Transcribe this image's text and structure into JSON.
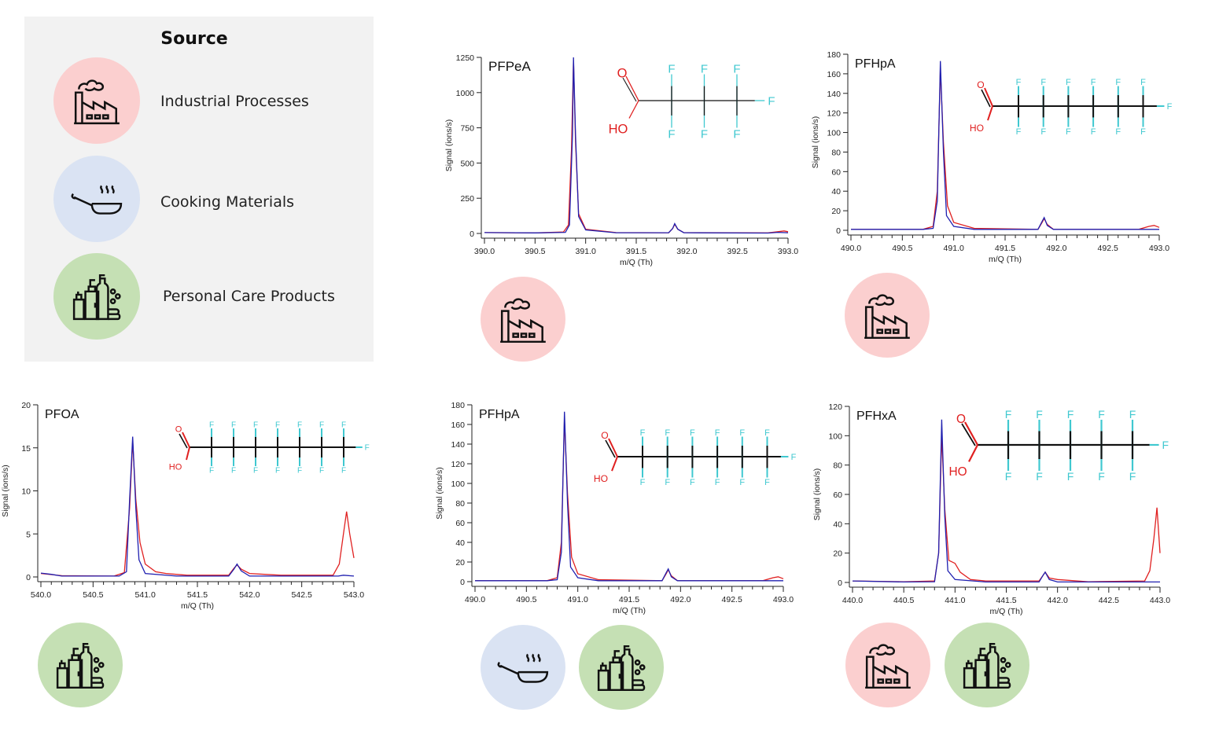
{
  "legend": {
    "title": "Source",
    "items": [
      {
        "label": "Industrial Processes",
        "icon": "factory-icon",
        "color": "#fbcfcf"
      },
      {
        "label": "Cooking Materials",
        "icon": "frying-pan-icon",
        "color": "#dae3f3"
      },
      {
        "label": "Personal Care Products",
        "icon": "bottles-icon",
        "color": "#c5e0b4"
      }
    ]
  },
  "colors": {
    "blue_series": "#2020b0",
    "red_series": "#e02020",
    "fluorine": "#40c8d0",
    "oxygen": "#e02020",
    "bond": "#111111"
  },
  "chart_data": [
    {
      "type": "line",
      "title": "PFPeA",
      "xlabel": "m/Q (Th)",
      "ylabel": "Signal (ions/s)",
      "xlim": [
        390.0,
        393.0
      ],
      "ylim": [
        0,
        1250
      ],
      "xticks": [
        "390.0",
        "390.5",
        "391.0",
        "391.5",
        "392.0",
        "392.5",
        "393.0"
      ],
      "yticks": [
        "0",
        "250",
        "500",
        "750",
        "1000",
        "1250"
      ],
      "molecule": {
        "cf2_units": 3,
        "o": "O",
        "ho": "HO",
        "f": "F"
      },
      "sources": [
        "factory-icon"
      ],
      "series": [
        {
          "color": "red",
          "points": [
            [
              390,
              6
            ],
            [
              390.5,
              4
            ],
            [
              390.78,
              10
            ],
            [
              390.83,
              60
            ],
            [
              390.86,
              600
            ],
            [
              390.88,
              1230
            ],
            [
              390.9,
              650
            ],
            [
              390.93,
              140
            ],
            [
              391.0,
              30
            ],
            [
              391.3,
              6
            ],
            [
              391.82,
              5
            ],
            [
              391.86,
              35
            ],
            [
              391.88,
              65
            ],
            [
              391.91,
              30
            ],
            [
              391.97,
              6
            ],
            [
              392.8,
              4
            ],
            [
              392.9,
              12
            ],
            [
              392.96,
              18
            ],
            [
              393,
              12
            ]
          ]
        },
        {
          "color": "blue",
          "points": [
            [
              390,
              6
            ],
            [
              390.5,
              4
            ],
            [
              390.8,
              8
            ],
            [
              390.84,
              60
            ],
            [
              390.87,
              700
            ],
            [
              390.88,
              1250
            ],
            [
              390.9,
              700
            ],
            [
              390.93,
              120
            ],
            [
              391.0,
              25
            ],
            [
              391.3,
              5
            ],
            [
              391.82,
              5
            ],
            [
              391.86,
              35
            ],
            [
              391.88,
              70
            ],
            [
              391.91,
              30
            ],
            [
              391.97,
              5
            ],
            [
              392.8,
              3
            ],
            [
              392.9,
              8
            ],
            [
              393,
              5
            ]
          ]
        }
      ]
    },
    {
      "type": "line",
      "title": "PFHpA",
      "xlabel": "m/Q (Th)",
      "ylabel": "Signal (ions/s)",
      "xlim": [
        490.0,
        493.0
      ],
      "ylim": [
        0,
        180
      ],
      "xticks": [
        "490.0",
        "490.5",
        "491.0",
        "491.5",
        "492.0",
        "492.5",
        "493.0"
      ],
      "yticks": [
        "0",
        "20",
        "40",
        "60",
        "80",
        "100",
        "120",
        "140",
        "160",
        "180"
      ],
      "molecule": {
        "cf2_units": 6,
        "o": "O",
        "ho": "HO",
        "f": "F"
      },
      "sources": [
        "factory-icon"
      ],
      "series": [
        {
          "color": "red",
          "points": [
            [
              490,
              1
            ],
            [
              490.7,
              1
            ],
            [
              490.8,
              4
            ],
            [
              490.84,
              40
            ],
            [
              490.87,
              165
            ],
            [
              490.9,
              90
            ],
            [
              490.94,
              25
            ],
            [
              491.0,
              8
            ],
            [
              491.2,
              2
            ],
            [
              491.82,
              1
            ],
            [
              491.86,
              8
            ],
            [
              491.88,
              12
            ],
            [
              491.91,
              6
            ],
            [
              491.97,
              1
            ],
            [
              492.8,
              1
            ],
            [
              492.9,
              4
            ],
            [
              492.95,
              5
            ],
            [
              493,
              3
            ]
          ]
        },
        {
          "color": "blue",
          "points": [
            [
              490,
              1
            ],
            [
              490.7,
              1
            ],
            [
              490.8,
              2
            ],
            [
              490.84,
              30
            ],
            [
              490.87,
              173
            ],
            [
              490.9,
              80
            ],
            [
              490.93,
              15
            ],
            [
              491.0,
              4
            ],
            [
              491.2,
              1
            ],
            [
              491.82,
              1
            ],
            [
              491.86,
              9
            ],
            [
              491.88,
              13
            ],
            [
              491.91,
              5
            ],
            [
              491.97,
              1
            ],
            [
              493,
              1
            ]
          ]
        }
      ]
    },
    {
      "type": "line",
      "title": "PFOA",
      "xlabel": "m/Q (Th)",
      "ylabel": "Signal (ions/s)",
      "xlim": [
        540.0,
        543.0
      ],
      "ylim": [
        0,
        20
      ],
      "xticks": [
        "540.0",
        "540.5",
        "541.0",
        "541.5",
        "542.0",
        "542.5",
        "543.0"
      ],
      "yticks": [
        "0",
        "5",
        "10",
        "15",
        "20"
      ],
      "molecule": {
        "cf2_units": 7,
        "o": "O",
        "ho": "HO",
        "f": "F"
      },
      "sources": [
        "bottles-icon"
      ],
      "series": [
        {
          "color": "red",
          "points": [
            [
              540,
              0.4
            ],
            [
              540.2,
              0.15
            ],
            [
              540.7,
              0.1
            ],
            [
              540.8,
              0.5
            ],
            [
              540.85,
              8
            ],
            [
              540.88,
              15.8
            ],
            [
              540.91,
              9
            ],
            [
              540.95,
              4
            ],
            [
              541.0,
              1.5
            ],
            [
              541.1,
              0.6
            ],
            [
              541.2,
              0.4
            ],
            [
              541.4,
              0.2
            ],
            [
              541.8,
              0.2
            ],
            [
              541.85,
              1.0
            ],
            [
              541.88,
              1.4
            ],
            [
              541.92,
              0.9
            ],
            [
              542.0,
              0.4
            ],
            [
              542.3,
              0.2
            ],
            [
              542.8,
              0.2
            ],
            [
              542.86,
              1.5
            ],
            [
              542.9,
              5
            ],
            [
              542.93,
              7.6
            ],
            [
              542.96,
              5
            ],
            [
              543,
              2.2
            ]
          ]
        },
        {
          "color": "blue",
          "points": [
            [
              540,
              0.45
            ],
            [
              540.1,
              0.3
            ],
            [
              540.2,
              0.1
            ],
            [
              540.75,
              0.1
            ],
            [
              540.82,
              0.6
            ],
            [
              540.85,
              9
            ],
            [
              540.88,
              16.3
            ],
            [
              540.91,
              8
            ],
            [
              540.94,
              2
            ],
            [
              541.0,
              0.4
            ],
            [
              541.3,
              0.1
            ],
            [
              541.8,
              0.1
            ],
            [
              541.85,
              0.9
            ],
            [
              541.88,
              1.5
            ],
            [
              541.92,
              0.7
            ],
            [
              542.0,
              0.1
            ],
            [
              542.85,
              0.1
            ],
            [
              542.9,
              0.2
            ],
            [
              543,
              0.1
            ]
          ]
        }
      ]
    },
    {
      "type": "line",
      "title": "PFHpA",
      "xlabel": "m/Q (Th)",
      "ylabel": "Signal (ions/s)",
      "xlim": [
        490.0,
        493.0
      ],
      "ylim": [
        0,
        180
      ],
      "xticks": [
        "490.0",
        "490.5",
        "491.0",
        "491.5",
        "492.0",
        "492.5",
        "493.0"
      ],
      "yticks": [
        "0",
        "20",
        "40",
        "60",
        "80",
        "100",
        "120",
        "140",
        "160",
        "180"
      ],
      "molecule": {
        "cf2_units": 6,
        "o": "O",
        "ho": "HO",
        "f": "F"
      },
      "sources": [
        "frying-pan-icon",
        "bottles-icon"
      ],
      "series": [
        {
          "color": "red",
          "points": [
            [
              490,
              1
            ],
            [
              490.7,
              1
            ],
            [
              490.8,
              4
            ],
            [
              490.84,
              40
            ],
            [
              490.87,
              165
            ],
            [
              490.9,
              90
            ],
            [
              490.94,
              25
            ],
            [
              491.0,
              8
            ],
            [
              491.2,
              2
            ],
            [
              491.82,
              1
            ],
            [
              491.86,
              8
            ],
            [
              491.88,
              12
            ],
            [
              491.91,
              6
            ],
            [
              491.97,
              1
            ],
            [
              492.8,
              1
            ],
            [
              492.9,
              4
            ],
            [
              492.95,
              5
            ],
            [
              493,
              3
            ]
          ]
        },
        {
          "color": "blue",
          "points": [
            [
              490,
              1
            ],
            [
              490.7,
              1
            ],
            [
              490.8,
              2
            ],
            [
              490.84,
              30
            ],
            [
              490.87,
              173
            ],
            [
              490.9,
              80
            ],
            [
              490.93,
              15
            ],
            [
              491.0,
              4
            ],
            [
              491.2,
              1
            ],
            [
              491.82,
              1
            ],
            [
              491.86,
              9
            ],
            [
              491.88,
              13
            ],
            [
              491.91,
              5
            ],
            [
              491.97,
              1
            ],
            [
              493,
              1
            ]
          ]
        }
      ]
    },
    {
      "type": "line",
      "title": "PFHxA",
      "xlabel": "m/Q (Th)",
      "ylabel": "Signal (ions/s)",
      "xlim": [
        440.0,
        443.0
      ],
      "ylim": [
        0,
        120
      ],
      "xticks": [
        "440.0",
        "440.5",
        "441.0",
        "441.5",
        "442.0",
        "442.5",
        "443.0"
      ],
      "yticks": [
        "0",
        "20",
        "40",
        "60",
        "80",
        "100",
        "120"
      ],
      "molecule": {
        "cf2_units": 5,
        "o": "O",
        "ho": "HO",
        "f": "F"
      },
      "sources": [
        "factory-icon",
        "bottles-icon"
      ],
      "series": [
        {
          "color": "red",
          "points": [
            [
              440,
              1
            ],
            [
              440.5,
              0.5
            ],
            [
              440.8,
              1
            ],
            [
              440.84,
              20
            ],
            [
              440.87,
              100
            ],
            [
              440.9,
              50
            ],
            [
              440.94,
              15
            ],
            [
              441.0,
              13
            ],
            [
              441.05,
              7
            ],
            [
              441.15,
              2
            ],
            [
              441.3,
              1
            ],
            [
              441.82,
              1
            ],
            [
              441.86,
              5
            ],
            [
              441.88,
              7
            ],
            [
              441.92,
              3
            ],
            [
              442.0,
              2
            ],
            [
              442.3,
              0.5
            ],
            [
              442.85,
              1
            ],
            [
              442.9,
              8
            ],
            [
              442.94,
              30
            ],
            [
              442.97,
              51
            ],
            [
              443,
              20
            ]
          ]
        },
        {
          "color": "blue",
          "points": [
            [
              440,
              1
            ],
            [
              440.5,
              0.3
            ],
            [
              440.8,
              0.5
            ],
            [
              440.84,
              20
            ],
            [
              440.87,
              111
            ],
            [
              440.9,
              45
            ],
            [
              440.93,
              8
            ],
            [
              441.0,
              2
            ],
            [
              441.3,
              0.3
            ],
            [
              441.82,
              0.3
            ],
            [
              441.86,
              5
            ],
            [
              441.88,
              7
            ],
            [
              441.92,
              2
            ],
            [
              442.0,
              0.3
            ],
            [
              443,
              0.3
            ]
          ]
        }
      ]
    }
  ]
}
